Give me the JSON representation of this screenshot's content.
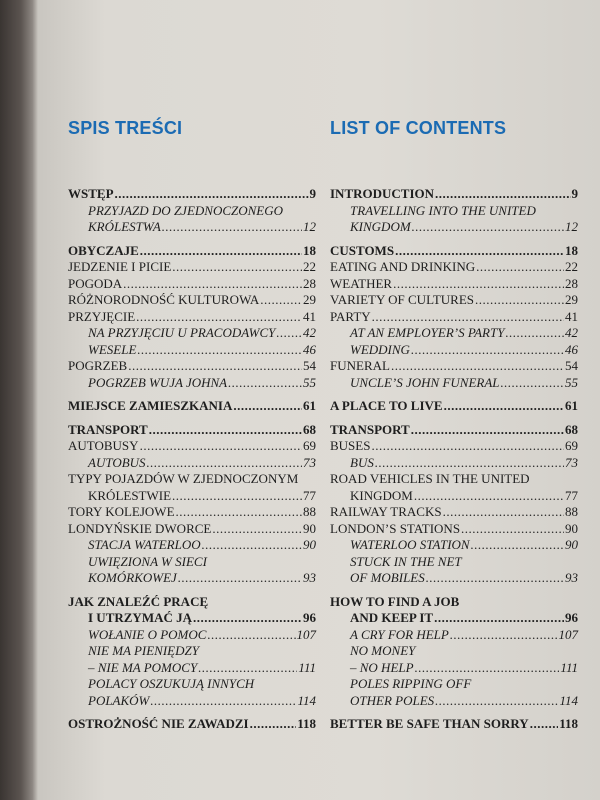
{
  "left": {
    "heading": "SPIS TREŚCI",
    "entries": [
      {
        "style": "bold",
        "lines": [
          "WSTĘP"
        ],
        "page": "9"
      },
      {
        "style": "italic",
        "lines": [
          "PRZYJAZD DO ZJEDNOCZONEGO",
          "KRÓLESTWA"
        ],
        "page": "12"
      },
      {
        "style": "bold",
        "lines": [
          "OBYCZAJE"
        ],
        "page": "18"
      },
      {
        "style": "normal",
        "lines": [
          "JEDZENIE I PICIE"
        ],
        "page": "22"
      },
      {
        "style": "normal",
        "lines": [
          "POGODA"
        ],
        "page": "28"
      },
      {
        "style": "normal",
        "lines": [
          "RÓŻNORODNOŚĆ KULTUROWA"
        ],
        "page": "29"
      },
      {
        "style": "normal",
        "lines": [
          "PRZYJĘCIE"
        ],
        "page": "41"
      },
      {
        "style": "italic",
        "lines": [
          "NA PRZYJĘCIU U PRACODAWCY"
        ],
        "page": "42"
      },
      {
        "style": "italic",
        "lines": [
          "WESELE"
        ],
        "page": "46"
      },
      {
        "style": "normal",
        "lines": [
          "POGRZEB"
        ],
        "page": "54"
      },
      {
        "style": "italic",
        "lines": [
          "POGRZEB WUJA JOHNA"
        ],
        "page": "55"
      },
      {
        "style": "bold",
        "lines": [
          "MIEJSCE ZAMIESZKANIA"
        ],
        "page": "61"
      },
      {
        "style": "bold",
        "lines": [
          "TRANSPORT"
        ],
        "page": "68"
      },
      {
        "style": "normal",
        "lines": [
          "AUTOBUSY"
        ],
        "page": "69"
      },
      {
        "style": "italic",
        "lines": [
          "AUTOBUS"
        ],
        "page": "73"
      },
      {
        "style": "normal",
        "lines": [
          "TYPY POJAZDÓW W ZJEDNOCZONYM",
          "KRÓLESTWIE"
        ],
        "page": "77"
      },
      {
        "style": "normal",
        "lines": [
          "TORY KOLEJOWE"
        ],
        "page": "88"
      },
      {
        "style": "normal",
        "lines": [
          "LONDYŃSKIE DWORCE"
        ],
        "page": "90"
      },
      {
        "style": "italic",
        "lines": [
          "STACJA WATERLOO"
        ],
        "page": "90"
      },
      {
        "style": "italic",
        "lines": [
          "UWIĘZIONA W SIECI",
          "KOMÓRKOWEJ"
        ],
        "page": "93"
      },
      {
        "style": "bold",
        "lines": [
          "JAK ZNALEŹĆ PRACĘ",
          "I UTRZYMAĆ JĄ"
        ],
        "page": "96"
      },
      {
        "style": "italic",
        "lines": [
          "WOŁANIE O POMOC"
        ],
        "page": "107"
      },
      {
        "style": "italic",
        "lines": [
          "NIE MA PIENIĘDZY",
          "– NIE MA POMOCY"
        ],
        "page": "111"
      },
      {
        "style": "italic",
        "lines": [
          "POLACY OSZUKUJĄ INNYCH",
          "POLAKÓW"
        ],
        "page": "114"
      },
      {
        "style": "bold",
        "lines": [
          "OSTROŻNOŚĆ NIE ZAWADZI"
        ],
        "page": "118"
      }
    ]
  },
  "right": {
    "heading": "LIST OF CONTENTS",
    "entries": [
      {
        "style": "bold",
        "lines": [
          "INTRODUCTION"
        ],
        "page": "9"
      },
      {
        "style": "italic",
        "lines": [
          "TRAVELLING INTO THE UNITED",
          "KINGDOM"
        ],
        "page": "12"
      },
      {
        "style": "bold",
        "lines": [
          "CUSTOMS"
        ],
        "page": "18"
      },
      {
        "style": "normal",
        "lines": [
          "EATING AND DRINKING"
        ],
        "page": "22"
      },
      {
        "style": "normal",
        "lines": [
          "WEATHER"
        ],
        "page": "28"
      },
      {
        "style": "normal",
        "lines": [
          "VARIETY OF CULTURES"
        ],
        "page": "29"
      },
      {
        "style": "normal",
        "lines": [
          "PARTY"
        ],
        "page": "41"
      },
      {
        "style": "italic",
        "lines": [
          "AT AN EMPLOYER’S PARTY"
        ],
        "page": "42"
      },
      {
        "style": "italic",
        "lines": [
          "WEDDING"
        ],
        "page": "46"
      },
      {
        "style": "normal",
        "lines": [
          "FUNERAL"
        ],
        "page": "54"
      },
      {
        "style": "italic",
        "lines": [
          "UNCLE’S JOHN FUNERAL"
        ],
        "page": "55"
      },
      {
        "style": "bold",
        "lines": [
          "A PLACE TO LIVE"
        ],
        "page": "61"
      },
      {
        "style": "bold",
        "lines": [
          "TRANSPORT"
        ],
        "page": "68"
      },
      {
        "style": "normal",
        "lines": [
          "BUSES"
        ],
        "page": "69"
      },
      {
        "style": "italic",
        "lines": [
          "BUS"
        ],
        "page": "73"
      },
      {
        "style": "normal",
        "lines": [
          "ROAD VEHICLES IN THE UNITED",
          "KINGDOM"
        ],
        "page": "77"
      },
      {
        "style": "normal",
        "lines": [
          "RAILWAY TRACKS"
        ],
        "page": "88"
      },
      {
        "style": "normal",
        "lines": [
          "LONDON’S STATIONS"
        ],
        "page": "90"
      },
      {
        "style": "italic",
        "lines": [
          "WATERLOO STATION"
        ],
        "page": "90"
      },
      {
        "style": "italic",
        "lines": [
          "STUCK IN THE NET",
          "OF MOBILES"
        ],
        "page": "93"
      },
      {
        "style": "bold",
        "lines": [
          "HOW TO FIND A JOB",
          "AND KEEP IT"
        ],
        "page": "96"
      },
      {
        "style": "italic",
        "lines": [
          "A CRY FOR HELP"
        ],
        "page": "107"
      },
      {
        "style": "italic",
        "lines": [
          "NO MONEY",
          "– NO HELP"
        ],
        "page": "111"
      },
      {
        "style": "italic",
        "lines": [
          "POLES RIPPING OFF",
          "OTHER POLES"
        ],
        "page": "114"
      },
      {
        "style": "bold",
        "lines": [
          "BETTER BE SAFE THAN SORRY"
        ],
        "page": "118"
      }
    ]
  },
  "colors": {
    "heading": "#1b6bb3",
    "paper": "#dcd9d3",
    "text": "#1e1e1e"
  }
}
